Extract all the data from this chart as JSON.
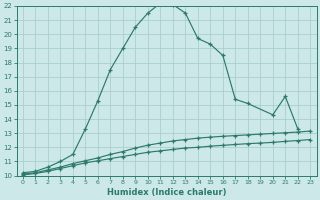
{
  "xlabel": "Humidex (Indice chaleur)",
  "bg_color": "#cce8e8",
  "grid_color": "#aacece",
  "line_color": "#2d7a6a",
  "xlim": [
    -0.5,
    23.5
  ],
  "ylim": [
    10,
    22
  ],
  "xtick_labels": [
    "0",
    "1",
    "2",
    "3",
    "4",
    "5",
    "6",
    "7",
    "8",
    "9",
    "10",
    "11",
    "12",
    "13",
    "14",
    "15",
    "16",
    "17",
    "18",
    "19",
    "20",
    "21",
    "22",
    "23"
  ],
  "ytick_labels": [
    "10",
    "11",
    "12",
    "13",
    "14",
    "15",
    "16",
    "17",
    "18",
    "19",
    "20",
    "21",
    "22"
  ],
  "curve1_x": [
    0,
    1,
    2,
    3,
    4,
    5,
    6,
    7,
    8,
    9,
    10,
    11,
    12,
    13,
    14,
    15,
    16,
    17,
    18,
    20,
    21,
    22
  ],
  "curve1_y": [
    10.2,
    10.3,
    10.6,
    11.0,
    11.5,
    13.3,
    15.3,
    17.5,
    19.0,
    20.5,
    21.5,
    22.2,
    22.1,
    21.5,
    19.7,
    19.3,
    18.5,
    15.4,
    15.1,
    14.3,
    15.6,
    13.3
  ],
  "curve2_x": [
    0,
    1,
    2,
    3,
    4,
    5,
    6,
    7,
    8,
    9,
    10,
    11,
    12,
    13,
    14,
    15,
    16,
    17,
    18,
    19,
    20,
    21,
    22,
    23
  ],
  "curve2_y": [
    10.1,
    10.2,
    10.4,
    10.6,
    10.85,
    11.05,
    11.25,
    11.5,
    11.7,
    11.95,
    12.15,
    12.3,
    12.45,
    12.55,
    12.65,
    12.72,
    12.78,
    12.83,
    12.88,
    12.93,
    12.98,
    13.03,
    13.08,
    13.15
  ],
  "curve3_x": [
    0,
    1,
    2,
    3,
    4,
    5,
    6,
    7,
    8,
    9,
    10,
    11,
    12,
    13,
    14,
    15,
    16,
    17,
    18,
    19,
    20,
    21,
    22,
    23
  ],
  "curve3_y": [
    10.05,
    10.15,
    10.3,
    10.5,
    10.7,
    10.9,
    11.05,
    11.2,
    11.35,
    11.5,
    11.65,
    11.75,
    11.85,
    11.95,
    12.0,
    12.08,
    12.14,
    12.2,
    12.26,
    12.3,
    12.35,
    12.42,
    12.48,
    12.55
  ]
}
